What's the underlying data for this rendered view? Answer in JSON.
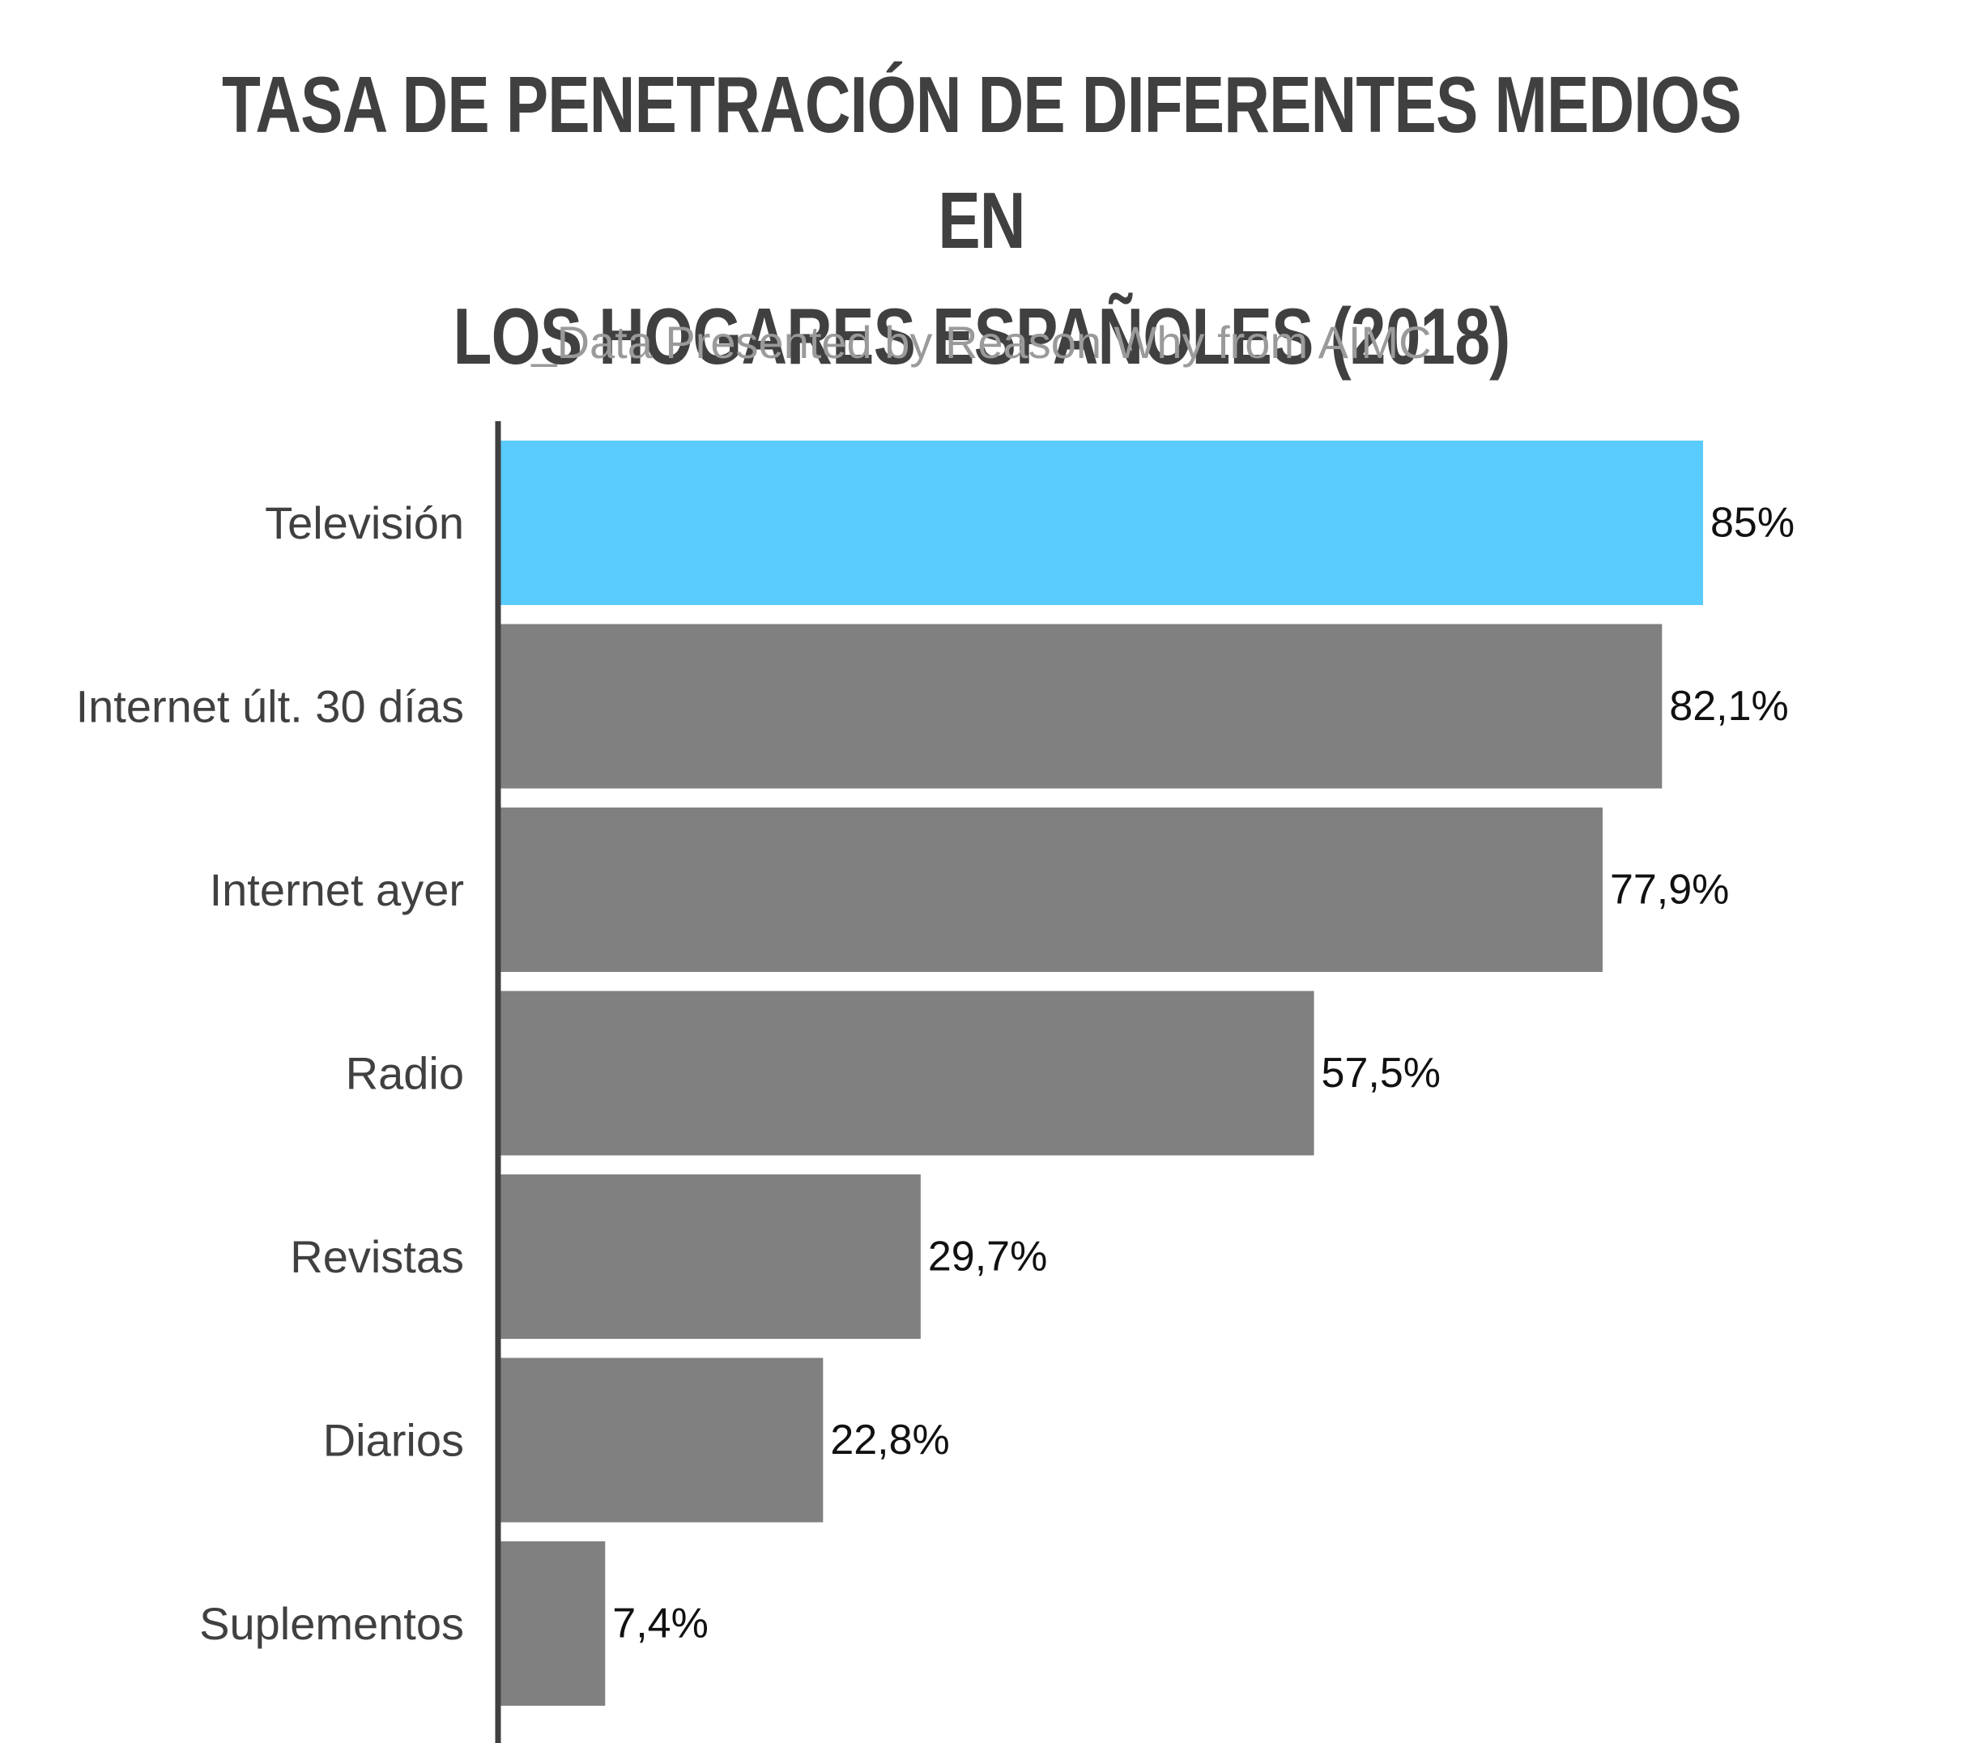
{
  "chart_data": {
    "type": "bar",
    "orientation": "horizontal",
    "title": "TASA DE PENETRACIÓN DE DIFERENTES MEDIOS EN LOS HOGARES ESPAÑOLES (2018)",
    "title_lines": [
      "TASA DE PENETRACIÓN DE DIFERENTES MEDIOS EN",
      "LOS HOGARES ESPAÑOLES (2018)"
    ],
    "subtitle": "_Data Presented by Reason Why from AIMC",
    "xlabel": "",
    "ylabel": "",
    "xlim": [
      0,
      85
    ],
    "grid": false,
    "categories": [
      "Televisión",
      "Internet últ. 30 días",
      "Internet ayer",
      "Radio",
      "Revistas",
      "Diarios",
      "Suplementos"
    ],
    "values": [
      85,
      82.1,
      77.9,
      57.5,
      29.7,
      22.8,
      7.4
    ],
    "value_labels": [
      "85%",
      "82,1%",
      "77,9%",
      "57,5%",
      "29,7%",
      "22,8%",
      "7,4%"
    ],
    "colors": {
      "highlight": "#59cbfc",
      "bar": "#808080",
      "axis": "#404040",
      "title": "#404040",
      "subtitle": "#9a9a9a"
    },
    "highlight_index": 0
  }
}
